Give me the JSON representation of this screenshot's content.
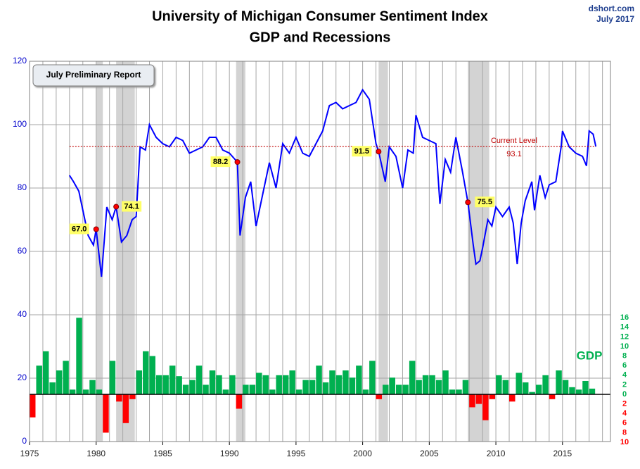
{
  "chart_data": {
    "type": "line",
    "title": [
      "University of Michigan Consumer Sentiment Index",
      "GDP and Recessions"
    ],
    "source": "dshort.com",
    "date": "July 2017",
    "report_label": "July Preliminary Report",
    "xlim": [
      1975,
      2018.6
    ],
    "xticks": [
      1975,
      1980,
      1985,
      1990,
      1995,
      2000,
      2005,
      2010,
      2015
    ],
    "ylim": [
      0,
      120
    ],
    "yticks": [
      0,
      20,
      40,
      60,
      80,
      100,
      120
    ],
    "y2lim": [
      -9.85,
      69.56
    ],
    "y2ticks": [
      {
        "value": -10,
        "label": "10"
      },
      {
        "value": -8,
        "label": "8"
      },
      {
        "value": -6,
        "label": "6"
      },
      {
        "value": -4,
        "label": "4"
      },
      {
        "value": -2,
        "label": "2"
      },
      0,
      2,
      4,
      6,
      8,
      10,
      12,
      14,
      16
    ],
    "grid": true,
    "recessions": [
      [
        1980.0,
        1980.5
      ],
      [
        1981.5,
        1982.9
      ],
      [
        1990.5,
        1991.2
      ],
      [
        2001.2,
        2001.9
      ],
      [
        2007.9,
        2009.5
      ]
    ],
    "series": [
      {
        "color": "#0000ff",
        "x": [
          1978.0,
          1978.3,
          1978.7,
          1979.0,
          1979.4,
          1979.8,
          1980.0,
          1980.4,
          1980.8,
          1981.2,
          1981.5,
          1981.9,
          1982.3,
          1982.7,
          1983.0,
          1983.3,
          1983.7,
          1984.0,
          1984.5,
          1985.0,
          1985.5,
          1986.0,
          1986.5,
          1987.0,
          1987.5,
          1988.0,
          1988.5,
          1989.0,
          1989.5,
          1990.0,
          1990.6,
          1990.8,
          1991.2,
          1991.6,
          1992.0,
          1992.5,
          1993.0,
          1993.5,
          1994.0,
          1994.5,
          1995.0,
          1995.5,
          1996.0,
          1996.5,
          1997.0,
          1997.5,
          1998.0,
          1998.5,
          1999.0,
          1999.5,
          2000.0,
          2000.5,
          2001.0,
          2001.2,
          2001.7,
          2002.0,
          2002.5,
          2003.0,
          2003.4,
          2003.8,
          2004.0,
          2004.5,
          2005.0,
          2005.5,
          2005.8,
          2006.2,
          2006.6,
          2007.0,
          2007.5,
          2007.9,
          2008.3,
          2008.5,
          2008.8,
          2009.0,
          2009.4,
          2009.7,
          2010.0,
          2010.5,
          2011.0,
          2011.3,
          2011.6,
          2011.9,
          2012.2,
          2012.7,
          2012.9,
          2013.3,
          2013.7,
          2014.0,
          2014.5,
          2014.9,
          2015.0,
          2015.5,
          2016.0,
          2016.5,
          2016.8,
          2017.0,
          2017.3,
          2017.5
        ],
        "values": [
          84,
          82,
          79,
          73,
          65,
          62,
          67,
          52,
          74,
          70,
          74.1,
          63,
          65,
          70,
          71,
          93,
          92,
          100,
          96,
          94,
          93,
          96,
          95,
          91,
          92,
          93,
          96,
          96,
          92,
          91,
          88.2,
          65,
          77,
          82,
          68,
          78,
          88,
          80,
          94,
          91,
          96,
          91,
          90,
          94,
          98,
          106,
          107,
          105,
          106,
          107,
          111,
          108,
          94,
          91.5,
          82,
          93,
          90,
          80,
          92,
          91,
          103,
          96,
          95,
          94,
          75,
          89,
          85,
          96,
          85,
          75.5,
          62,
          56,
          57,
          61,
          70,
          68,
          74,
          71,
          74,
          69,
          56,
          69,
          76,
          82,
          73,
          84,
          77,
          81,
          82,
          93,
          98,
          93,
          91,
          90,
          87,
          98,
          97,
          93.1
        ]
      },
      {
        "name": "GDP",
        "axis": "y2",
        "type": "bar",
        "color": "#00b050",
        "negative_color": "#ff0000",
        "x": [
          1975.0,
          1975.5,
          1976.0,
          1976.5,
          1977.0,
          1977.5,
          1978.0,
          1978.5,
          1979.0,
          1979.5,
          1980.0,
          1980.5,
          1981.0,
          1981.5,
          1982.0,
          1982.5,
          1983.0,
          1983.5,
          1984.0,
          1984.5,
          1985.0,
          1985.5,
          1986.0,
          1986.5,
          1987.0,
          1987.5,
          1988.0,
          1988.5,
          1989.0,
          1989.5,
          1990.0,
          1990.5,
          1991.0,
          1991.5,
          1992.0,
          1992.5,
          1993.0,
          1993.5,
          1994.0,
          1994.5,
          1995.0,
          1995.5,
          1996.0,
          1996.5,
          1997.0,
          1997.5,
          1998.0,
          1998.5,
          1999.0,
          1999.5,
          2000.0,
          2000.5,
          2001.0,
          2001.5,
          2002.0,
          2002.5,
          2003.0,
          2003.5,
          2004.0,
          2004.5,
          2005.0,
          2005.5,
          2006.0,
          2006.5,
          2007.0,
          2007.5,
          2008.0,
          2008.5,
          2009.0,
          2009.5,
          2010.0,
          2010.5,
          2011.0,
          2011.5,
          2012.0,
          2012.5,
          2013.0,
          2013.5,
          2014.0,
          2014.5,
          2015.0,
          2015.5,
          2016.0,
          2016.5,
          2017.0
        ],
        "values": [
          -4.8,
          6,
          9,
          2.5,
          5,
          7,
          1,
          16,
          1,
          3,
          1,
          -8,
          7,
          -1.5,
          -6,
          -1,
          5,
          9,
          8,
          4,
          4,
          6,
          3.8,
          2,
          3,
          6,
          2,
          5,
          4,
          1,
          4,
          -3,
          2,
          2,
          4.5,
          4,
          1,
          4,
          4,
          5,
          1,
          3,
          3,
          6,
          2.5,
          5,
          4,
          5,
          3.5,
          6,
          1,
          7,
          -1,
          2,
          3.5,
          2,
          2,
          7,
          3,
          4,
          4,
          3,
          5,
          1,
          1,
          3,
          -2.7,
          -2,
          -5.4,
          -1,
          4,
          3,
          -1.5,
          4.5,
          2.5,
          0.5,
          2,
          4,
          -1,
          5,
          3,
          1.5,
          1,
          2.8,
          1.2
        ]
      }
    ],
    "annotations": [
      {
        "x": 1980.0,
        "value": 67.0,
        "label": "67.0"
      },
      {
        "x": 1981.5,
        "value": 74.1,
        "label": "74.1"
      },
      {
        "x": 1990.6,
        "value": 88.2,
        "label": "88.2"
      },
      {
        "x": 2001.2,
        "value": 91.5,
        "label": "91.5"
      },
      {
        "x": 2007.9,
        "value": 75.5,
        "label": "75.5"
      }
    ],
    "current_level": {
      "label": "Current Level",
      "value": 93.1,
      "x": [
        1978.0,
        2017.5
      ]
    }
  }
}
